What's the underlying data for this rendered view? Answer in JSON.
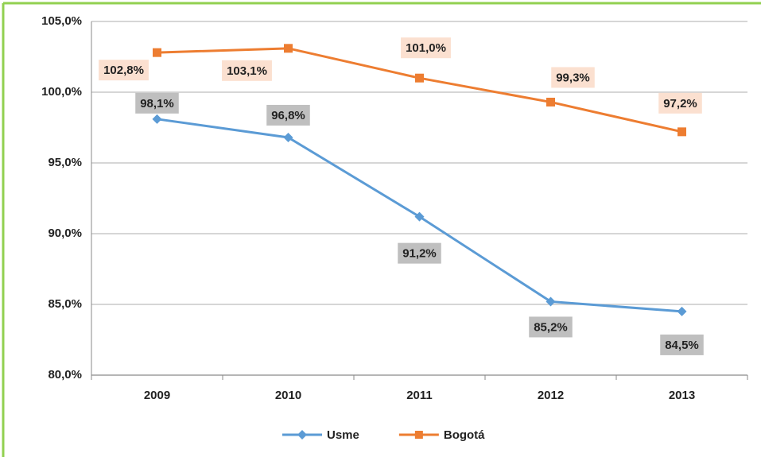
{
  "chart_data": {
    "type": "line",
    "categories": [
      "2009",
      "2010",
      "2011",
      "2012",
      "2013"
    ],
    "series": [
      {
        "name": "Usme",
        "color": "#5b9bd5",
        "marker": "diamond",
        "label_bg": "#bfbfbf",
        "values": [
          98.1,
          96.8,
          91.2,
          85.2,
          84.5
        ],
        "value_labels": [
          "98,1%",
          "96,8%",
          "91,2%",
          "85,2%",
          "84,5%"
        ]
      },
      {
        "name": "Bogotá",
        "color": "#ed7d31",
        "marker": "square",
        "label_bg": "#fbe0d0",
        "values": [
          102.8,
          103.1,
          101.0,
          99.3,
          97.2
        ],
        "value_labels": [
          "102,8%",
          "103,1%",
          "101,0%",
          "99,3%",
          "97,2%"
        ]
      }
    ],
    "ylim": [
      80,
      105
    ],
    "yticks": [
      {
        "value": 80,
        "label": "80,0%"
      },
      {
        "value": 85,
        "label": "85,0%"
      },
      {
        "value": 90,
        "label": "90,0%"
      },
      {
        "value": 95,
        "label": "95,0%"
      },
      {
        "value": 100,
        "label": "100,0%"
      },
      {
        "value": 105,
        "label": "105,0%"
      }
    ],
    "grid": true,
    "legend": "bottom"
  }
}
